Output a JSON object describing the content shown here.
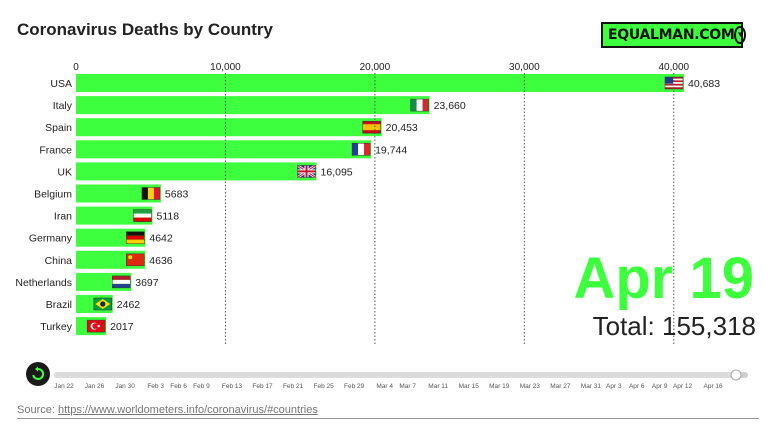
{
  "title": "Coronavirus Deaths by Country",
  "brand": {
    "label": "EQUALMAN.COM",
    "icon": "chevron-down-circle-icon"
  },
  "date_label": "Apr 19",
  "total": {
    "label": "Total:",
    "value": "155,318"
  },
  "source": {
    "label": "Source:",
    "url": "https://www.worldometers.info/coronavirus/#countries"
  },
  "colors": {
    "bar": "#3dff3d",
    "accent": "#3dff3d",
    "text": "#222222"
  },
  "chart_data": {
    "type": "bar",
    "orientation": "horizontal",
    "title": "Coronavirus Deaths by Country",
    "xlim": [
      0,
      40683
    ],
    "x_ticks": [
      "0",
      "10,000",
      "20,000",
      "30,000",
      "40,000"
    ],
    "x_tick_values": [
      0,
      10000,
      20000,
      30000,
      40000
    ],
    "grid": true,
    "categories": [
      "USA",
      "Italy",
      "Spain",
      "France",
      "UK",
      "Belgium",
      "Iran",
      "Germany",
      "China",
      "Netherlands",
      "Brazil",
      "Turkey"
    ],
    "values": [
      40683,
      23660,
      20453,
      19744,
      16095,
      5683,
      5118,
      4642,
      4636,
      3697,
      2462,
      2017
    ],
    "value_labels": [
      "40,683",
      "23,660",
      "20,453",
      "19,744",
      "16,095",
      "5683",
      "5118",
      "4642",
      "4636",
      "3697",
      "2462",
      "2017"
    ]
  },
  "timeline": {
    "labels": [
      "Jan 22",
      "Jan 26",
      "Jan 30",
      "Feb 3",
      "Feb 6",
      "Feb 9",
      "Feb 13",
      "Feb 17",
      "Feb 21",
      "Feb 25",
      "Feb 29",
      "Mar 4",
      "Mar 7",
      "Mar 11",
      "Mar 15",
      "Mar 19",
      "Mar 23",
      "Mar 27",
      "Mar 31",
      "Apr 3",
      "Apr 6",
      "Apr 9",
      "Apr 12",
      "Apr 16"
    ],
    "days": [
      0,
      4,
      8,
      12,
      15,
      18,
      22,
      26,
      30,
      34,
      38,
      42,
      45,
      49,
      53,
      57,
      61,
      65,
      69,
      72,
      75,
      78,
      81,
      85
    ],
    "current_day": 88
  }
}
